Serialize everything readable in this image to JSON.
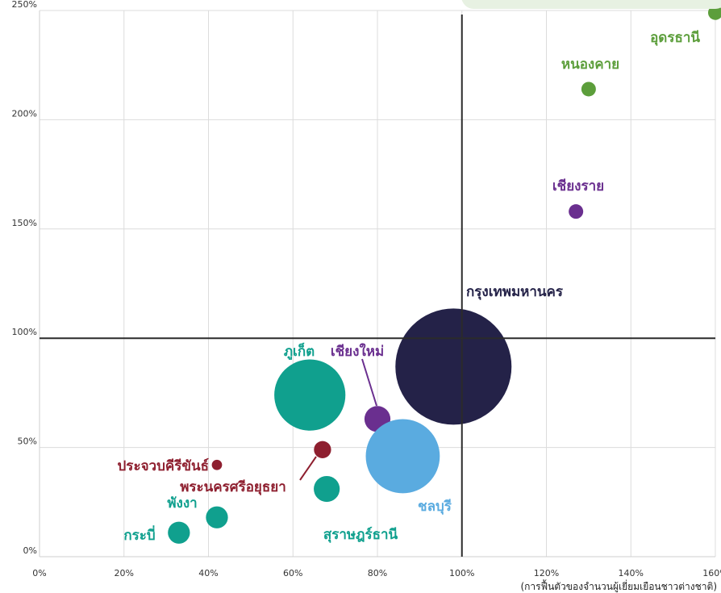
{
  "chart_data": {
    "type": "scatter",
    "title": "",
    "x_caption": "(การฟื้นตัวของจำนวนผู้เยี่ยมเยือนชาวต่างชาติ)",
    "xlim": [
      0,
      160
    ],
    "ylim": [
      0,
      250
    ],
    "x_ticks": [
      {
        "value": 0,
        "label": "0%"
      },
      {
        "value": 20,
        "label": "20%"
      },
      {
        "value": 40,
        "label": "40%"
      },
      {
        "value": 60,
        "label": "60%"
      },
      {
        "value": 80,
        "label": "80%"
      },
      {
        "value": 100,
        "label": "100%"
      },
      {
        "value": 120,
        "label": "120%"
      },
      {
        "value": 140,
        "label": "140%"
      },
      {
        "value": 160,
        "label": "160%"
      }
    ],
    "y_ticks": [
      {
        "value": 0,
        "label": "0%"
      },
      {
        "value": 50,
        "label": "50%"
      },
      {
        "value": 100,
        "label": "100%"
      },
      {
        "value": 150,
        "label": "150%"
      },
      {
        "value": 200,
        "label": "200%"
      },
      {
        "value": 250,
        "label": "250%"
      }
    ],
    "reference_lines": {
      "x": 100,
      "y": 100
    },
    "grid": true,
    "colors": {
      "green": "#5c9e3b",
      "purple": "#6a2f8f",
      "teal": "#10a08e",
      "maroon": "#8e1f2f",
      "navy": "#242248",
      "blue": "#5aabe0"
    },
    "points": [
      {
        "name": "อุดรธานี",
        "x": 160,
        "y": 249,
        "size": 1,
        "color": "green"
      },
      {
        "name": "หนองคาย",
        "x": 130,
        "y": 214,
        "size": 1,
        "color": "green"
      },
      {
        "name": "เชียงราย",
        "x": 127,
        "y": 158,
        "size": 1,
        "color": "purple"
      },
      {
        "name": "กรุงเทพมหานคร",
        "x": 98,
        "y": 87,
        "size": 64,
        "color": "navy"
      },
      {
        "name": "ภูเก็ต",
        "x": 64,
        "y": 74,
        "size": 24,
        "color": "teal"
      },
      {
        "name": "เชียงใหม่",
        "x": 80,
        "y": 63,
        "size": 3.2,
        "color": "purple"
      },
      {
        "name": "ชลบุรี",
        "x": 86,
        "y": 46,
        "size": 26,
        "color": "blue"
      },
      {
        "name": "ประจวบคีรีขันธ์",
        "x": 42,
        "y": 42,
        "size": 0.5,
        "color": "maroon"
      },
      {
        "name": "พระนครศรีอยุธยา",
        "x": 67,
        "y": 49,
        "size": 1.4,
        "color": "maroon"
      },
      {
        "name": "สุราษฎร์ธานี",
        "x": 68,
        "y": 31,
        "size": 3.2,
        "color": "teal"
      },
      {
        "name": "พังงา",
        "x": 42,
        "y": 18,
        "size": 2.3,
        "color": "teal"
      },
      {
        "name": "กระบี่",
        "x": 33,
        "y": 11,
        "size": 2.3,
        "color": "teal"
      }
    ]
  }
}
